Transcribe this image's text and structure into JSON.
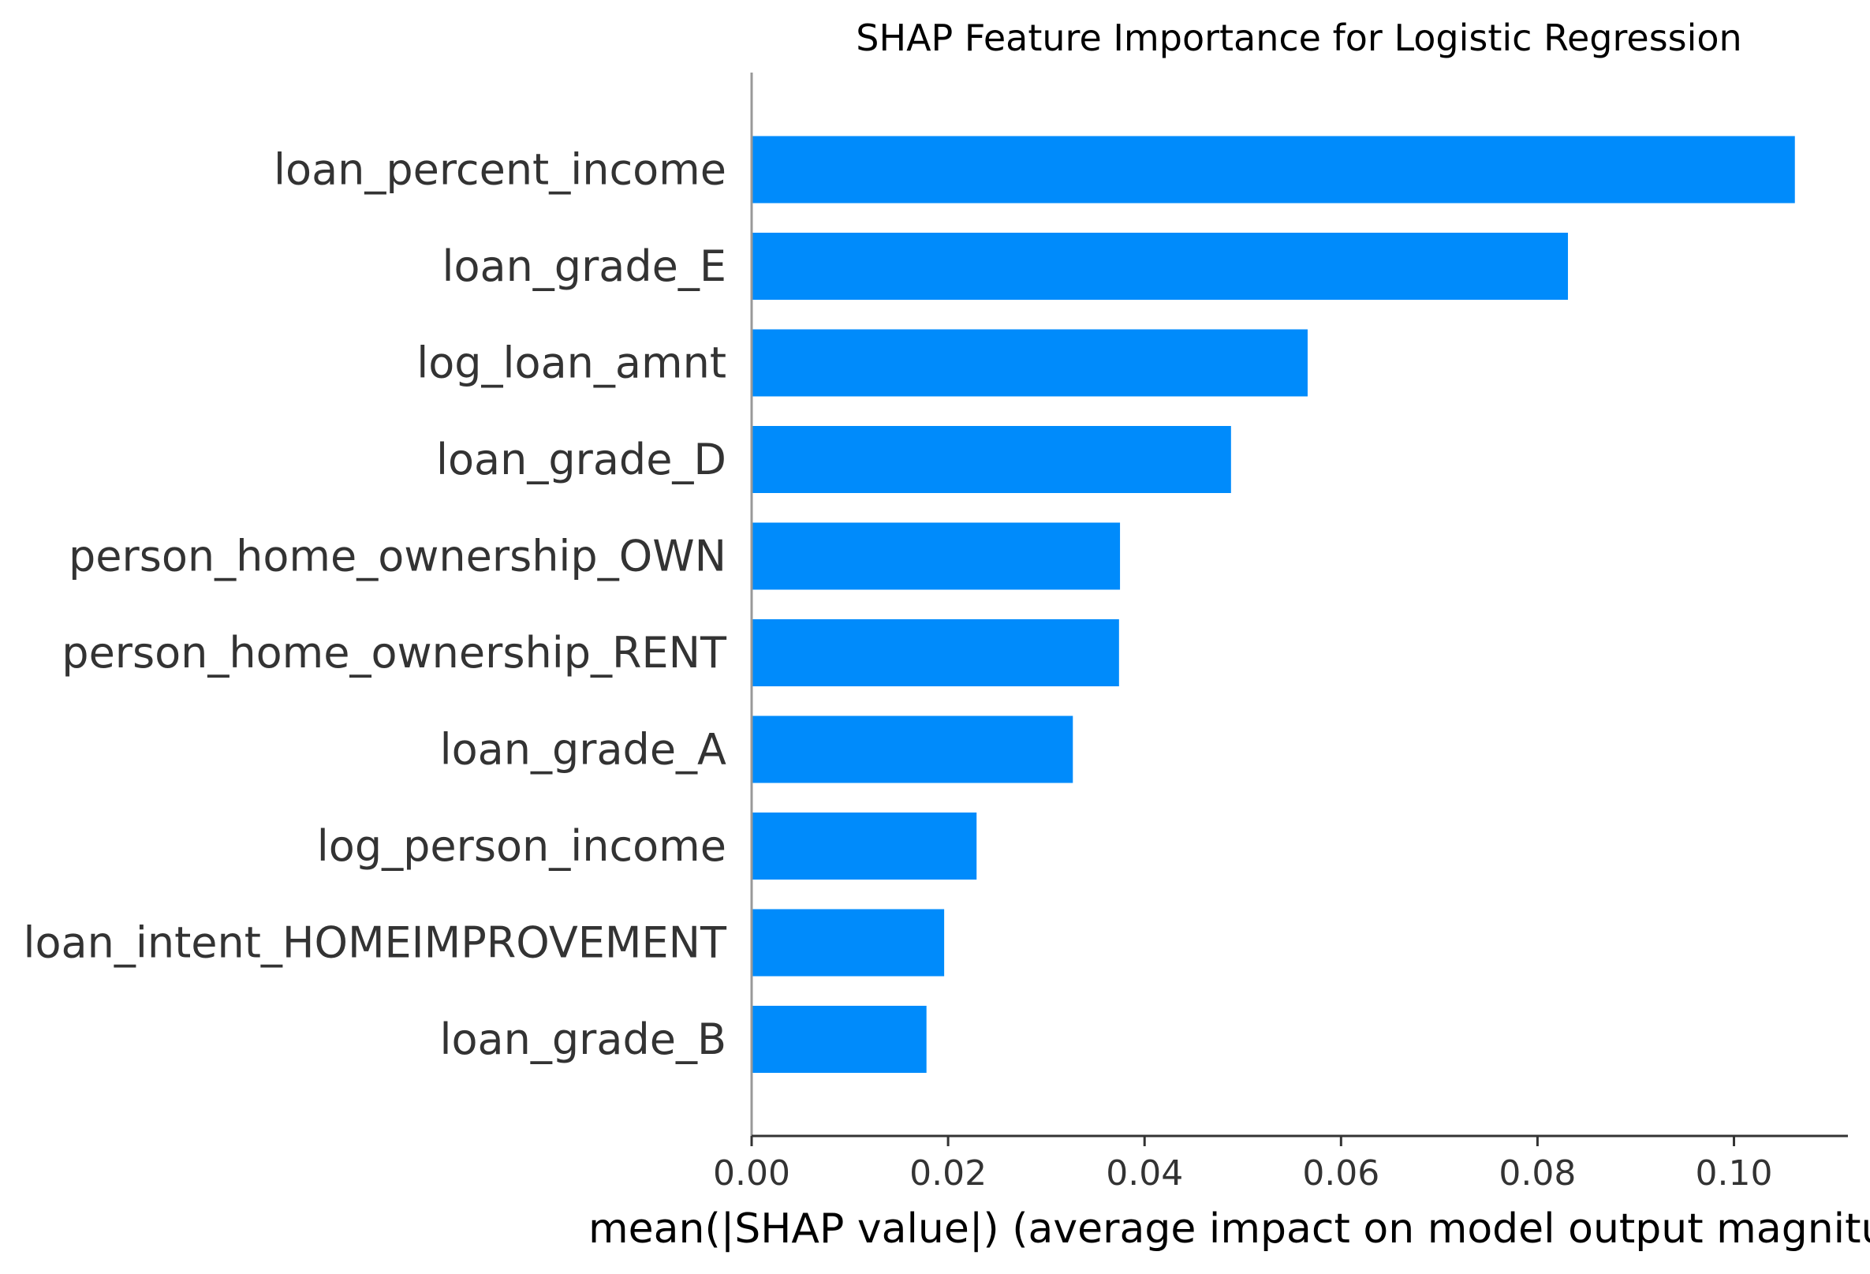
{
  "chart_data": {
    "type": "bar",
    "orientation": "horizontal",
    "title": "SHAP Feature Importance for Logistic Regression",
    "xlabel": "mean(|SHAP value|) (average impact on model output magnitude)",
    "ylabel": "",
    "categories": [
      "loan_percent_income",
      "loan_grade_E",
      "log_loan_amnt",
      "loan_grade_D",
      "person_home_ownership_OWN",
      "person_home_ownership_RENT",
      "loan_grade_A",
      "log_person_income",
      "loan_intent_HOMEIMPROVEMENT",
      "loan_grade_B"
    ],
    "values": [
      0.1062,
      0.0831,
      0.0566,
      0.0488,
      0.0375,
      0.0374,
      0.0327,
      0.0229,
      0.0196,
      0.0178
    ],
    "xlim": [
      0,
      0.1116
    ],
    "xticks": [
      "0.00",
      "0.02",
      "0.04",
      "0.06",
      "0.08",
      "0.10"
    ],
    "bar_color": "#008bfb",
    "grid": false,
    "legend": "none"
  }
}
